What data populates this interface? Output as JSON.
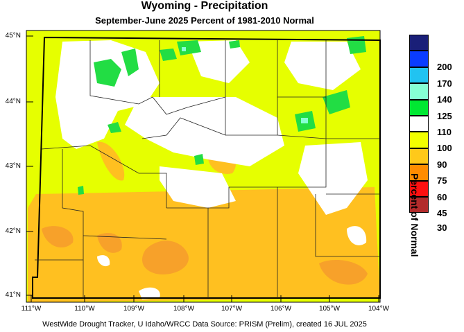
{
  "title": "Wyoming - Precipitation",
  "subtitle": "September-June 2025  Percent of 1981-2010 Normal",
  "credit": "WestWide Drought Tracker, U Idaho/WRCC Data Source: PRISM (Prelim), created 16 JUL 2025",
  "legend": {
    "title": "Percent of Normal",
    "classes": [
      {
        "color": "#1a1f78",
        "label": ""
      },
      {
        "color": "#0a3cff",
        "label": "200"
      },
      {
        "color": "#21c3f1",
        "label": "170"
      },
      {
        "color": "#86ffd4",
        "label": "140"
      },
      {
        "color": "#00e832",
        "label": "125"
      },
      {
        "color": "#ffffff",
        "label": "110"
      },
      {
        "color": "#f2ff00",
        "label": "100"
      },
      {
        "color": "#ffc91a",
        "label": "90"
      },
      {
        "color": "#ff8c00",
        "label": "75"
      },
      {
        "color": "#ff1010",
        "label": "60"
      },
      {
        "color": "#b22b2b",
        "label": "45"
      }
    ],
    "bottom_label": "30"
  },
  "latitude_labels": [
    "45°N",
    "44°N",
    "43°N",
    "42°N",
    "41°N"
  ],
  "longitude_labels": [
    "111°W",
    "110°W",
    "109°W",
    "108°W",
    "107°W",
    "106°W",
    "105°W",
    "104°W"
  ],
  "colors": {
    "yellow": "#e6ff00",
    "white": "#ffffff",
    "green": "#22dd44",
    "orange": "#ffc020",
    "dark_orange": "#f7a12a",
    "teal": "#86ffd4"
  }
}
